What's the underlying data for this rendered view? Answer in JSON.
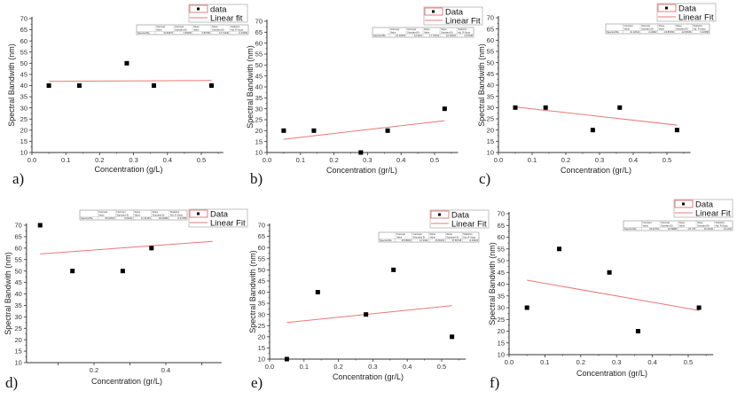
{
  "chart_data": [
    {
      "type": "scatter",
      "panel_label": "a)",
      "xlabel": "Concentration (g/L)",
      "ylabel": "Spectral Bandwith (nm)",
      "xlim": [
        0.0,
        0.565
      ],
      "xticks": [
        "0.0",
        "0.1",
        "0.2",
        "0.3",
        "0.4",
        "0.5"
      ],
      "ylim": [
        10,
        70
      ],
      "yticks": [
        "10",
        "15",
        "20",
        "25",
        "30",
        "35",
        "40",
        "45",
        "50",
        "55",
        "60",
        "65",
        "70"
      ],
      "legend": {
        "data": "data",
        "fit": "Linear fit"
      },
      "points": [
        [
          0.05,
          40
        ],
        [
          0.14,
          40
        ],
        [
          0.28,
          50
        ],
        [
          0.36,
          40
        ],
        [
          0.53,
          40
        ]
      ],
      "fit": {
        "intercept": 41.8467,
        "slope": 0.86756,
        "x_range": [
          0.05,
          0.53
        ]
      },
      "stats": {
        "headers": [
          [
            "",
            "Intercept",
            "Intercept",
            "Slope",
            "Slope",
            "Statistics"
          ],
          [
            "",
            "Value",
            "Standard Er",
            "Value",
            "Standard Er",
            "Adj. R-Squa"
          ]
        ],
        "row": [
          "Spectral Ba",
          "41.84670",
          "4.50056",
          "0.86756",
          "12.74440",
          "-0.33256"
        ]
      }
    },
    {
      "type": "scatter",
      "panel_label": "b)",
      "xlabel": "Concentration (gr/L)",
      "ylabel": "Spectral Bandwith (nm)",
      "xlim": [
        0.0,
        0.57
      ],
      "xticks": [
        "0.0",
        "0.1",
        "0.2",
        "0.3",
        "0.4",
        "0.5"
      ],
      "ylim": [
        10,
        70
      ],
      "yticks": [
        "10",
        "15",
        "20",
        "25",
        "30",
        "35",
        "40",
        "45",
        "50",
        "55",
        "60",
        "65",
        "70"
      ],
      "legend": {
        "data": "Data",
        "fit": "Linear Fit"
      },
      "points": [
        [
          0.05,
          20
        ],
        [
          0.14,
          20
        ],
        [
          0.28,
          10
        ],
        [
          0.36,
          20
        ],
        [
          0.53,
          30
        ]
      ],
      "fit": {
        "intercept": 15.16604,
        "slope": 17.72044,
        "x_range": [
          0.05,
          0.53
        ]
      },
      "stats": {
        "headers": [
          [
            "",
            "Intercept",
            "Intercept",
            "Slope",
            "Slope",
            "Statistics"
          ],
          [
            "",
            "Value",
            "Standard Er",
            "Value",
            "Standard Er",
            "Adj. R-Squa"
          ]
        ],
        "row": [
          "Spectral Ba",
          "15.16604",
          "6.11161",
          "17.72044",
          "16.16604",
          "0.03798"
        ]
      }
    },
    {
      "type": "scatter",
      "panel_label": "c)",
      "xlabel": "Concentration (gr/L)",
      "ylabel": "Spectral Bandwith (nm)",
      "xlim": [
        0.0,
        0.57
      ],
      "xticks": [
        "0.0",
        "0.1",
        "0.2",
        "0.3",
        "0.4",
        "0.5"
      ],
      "ylim": [
        10,
        70
      ],
      "yticks": [
        "10",
        "15",
        "20",
        "25",
        "30",
        "35",
        "40",
        "45",
        "50",
        "55",
        "60",
        "65",
        "70"
      ],
      "legend": {
        "data": "Data",
        "fit": "Linear Fit"
      },
      "points": [
        [
          0.05,
          30
        ],
        [
          0.14,
          30
        ],
        [
          0.28,
          20
        ],
        [
          0.36,
          30
        ],
        [
          0.53,
          20
        ]
      ],
      "fit": {
        "intercept": 31.12644,
        "slope": -16.8545,
        "x_range": [
          0.05,
          0.53
        ]
      },
      "stats": {
        "headers": [
          [
            "",
            "Intercept",
            "Intercept",
            "Slope",
            "Slope",
            "Statistics"
          ],
          [
            "",
            "Value",
            "Standard Er",
            "Value",
            "Standard Er",
            "Adj. R-Squa"
          ]
        ],
        "row": [
          "Spectral Ba",
          "31.12644",
          "4.10962",
          "-16.85450",
          "12.84636",
          "0.22358"
        ]
      }
    },
    {
      "type": "scatter",
      "panel_label": "d)",
      "xlabel": "Concentration (gr/L)",
      "ylabel": "Spectral Bandwith (nm)",
      "xlim": [
        0.012,
        0.555
      ],
      "xticks": [
        "",
        "0.2",
        "",
        "0.4",
        ""
      ],
      "xtick_values": [
        0.1,
        0.2,
        0.3,
        0.4,
        0.5
      ],
      "ylim": [
        10,
        70
      ],
      "yticks": [
        "10",
        "15",
        "20",
        "25",
        "30",
        "35",
        "40",
        "45",
        "50",
        "55",
        "60",
        "65",
        "70"
      ],
      "legend": {
        "data": "Data",
        "fit": "Linear Fit"
      },
      "points": [
        [
          0.05,
          70
        ],
        [
          0.14,
          50
        ],
        [
          0.28,
          50
        ],
        [
          0.36,
          60
        ]
      ],
      "fit": {
        "intercept": 56.91623,
        "slope": 11.34109,
        "x_range": [
          0.05,
          0.53
        ]
      },
      "stats": {
        "headers": [
          [
            "",
            "Intercept",
            "Intercept",
            "Slope",
            "Slope",
            "Statistics"
          ],
          [
            "",
            "Value",
            "Standard Er",
            "Value",
            "Standard Er",
            "Adj. R-Squa"
          ]
        ],
        "row": [
          "Spectral Ba",
          "56.91623",
          "9.60242",
          "11.34109",
          "30.03960",
          "-0.27258"
        ]
      }
    },
    {
      "type": "scatter",
      "panel_label": "e)",
      "xlabel": "Concentration (gr/L)",
      "ylabel": "Spectral Bandwith (nm)",
      "xlim": [
        0.0,
        0.57
      ],
      "xticks": [
        "0.0",
        "0.1",
        "0.2",
        "0.3",
        "0.4",
        "0.5"
      ],
      "ylim": [
        10,
        70
      ],
      "yticks": [
        "10",
        "15",
        "20",
        "25",
        "30",
        "35",
        "40",
        "45",
        "50",
        "55",
        "60",
        "65",
        "70"
      ],
      "legend": {
        "data": "Data",
        "fit": "Linear Fit"
      },
      "points": [
        [
          0.05,
          10
        ],
        [
          0.14,
          40
        ],
        [
          0.28,
          30
        ],
        [
          0.36,
          50
        ],
        [
          0.53,
          20
        ]
      ],
      "fit": {
        "intercept": 25.58664,
        "slope": 15.82231,
        "x_range": [
          0.05,
          0.53
        ]
      },
      "stats": {
        "headers": [
          [
            "",
            "Intercept",
            "Intercept",
            "Slope",
            "Slope",
            "Statistics"
          ],
          [
            "",
            "Value",
            "Standard Er",
            "Value",
            "Standard Er",
            "Adj. R-Squa"
          ]
        ],
        "row": [
          "Spectral Ba",
          "25.58664",
          "14.2462",
          "15.82231",
          "47.89798",
          "-0.29334"
        ]
      }
    },
    {
      "type": "scatter",
      "panel_label": "f)",
      "xlabel": "Concentration (gr/L)",
      "ylabel": "Spectral Bandwith (nm)",
      "xlim": [
        0.0,
        0.57
      ],
      "xticks": [
        "0.0",
        "0.1",
        "0.2",
        "0.3",
        "0.4",
        "0.5"
      ],
      "ylim": [
        10,
        70
      ],
      "yticks": [
        "10",
        "15",
        "20",
        "25",
        "30",
        "35",
        "40",
        "45",
        "50",
        "55",
        "60",
        "65",
        "70"
      ],
      "legend": {
        "data": "Data",
        "fit": "Linear Fit"
      },
      "points": [
        [
          0.05,
          30
        ],
        [
          0.14,
          55
        ],
        [
          0.28,
          45
        ],
        [
          0.36,
          20
        ],
        [
          0.53,
          30
        ]
      ],
      "fit": {
        "intercept": 43.02752,
        "slope": -26.778,
        "x_range": [
          0.05,
          0.53
        ]
      },
      "stats": {
        "headers": [
          [
            "",
            "Intercept",
            "Intercept",
            "Slope",
            "Slope",
            "Statistics"
          ],
          [
            "",
            "Value",
            "Standard Er",
            "Value",
            "Standard Er",
            "Adj. R-Squa"
          ]
        ],
        "row": [
          "Spectral Ba",
          "43.02752",
          "12.59883",
          "-26.778",
          "39.29411",
          "-0.11102"
        ]
      }
    }
  ],
  "colors": {
    "points": "#000000",
    "fit_line": "#e87878",
    "legend_border": "#e06060",
    "axis": "#333333"
  }
}
